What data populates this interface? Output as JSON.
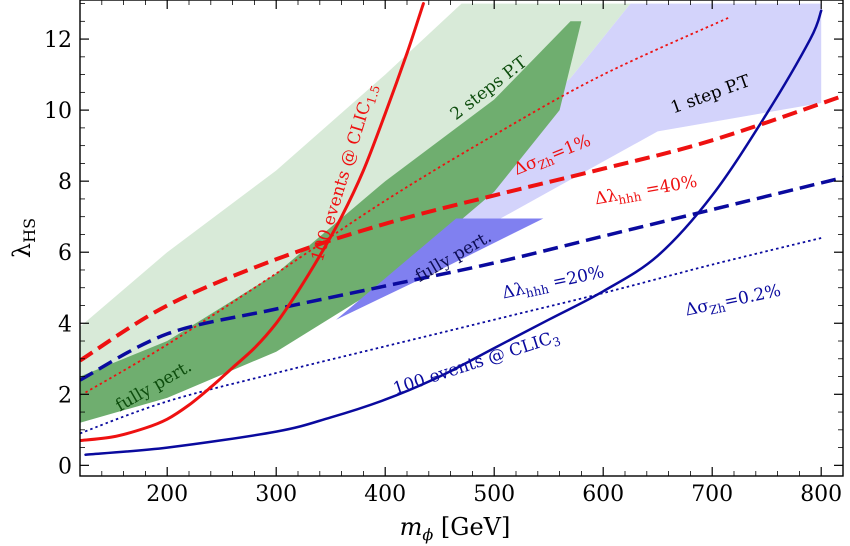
{
  "chart_data": {
    "type": "line",
    "xlabel": "m",
    "xlabel_sub": "ϕ",
    "xlabel_unit": " [GeV]",
    "ylabel": "λ",
    "ylabel_sub": "HS",
    "xlim": [
      120,
      820
    ],
    "ylim": [
      -0.3,
      13.1
    ],
    "xticks": [
      200,
      300,
      400,
      500,
      600,
      700,
      800
    ],
    "yticks": [
      0,
      2,
      4,
      6,
      8,
      10,
      12
    ],
    "colors": {
      "red": "#ee1111",
      "navy": "#0a0a9e",
      "light_green": "#d8ead8",
      "dark_green": "#6fae6f",
      "light_blue": "#d3d3fb",
      "mid_blue": "#8080f0",
      "annot_green": "#0d4d0d"
    },
    "regions": [
      {
        "id": "two-step-light-band",
        "color": "#d8ead8",
        "points": [
          [
            120,
            2.0
          ],
          [
            200,
            3.0
          ],
          [
            300,
            4.6
          ],
          [
            400,
            6.7
          ],
          [
            500,
            9.1
          ],
          [
            570,
            10.9
          ],
          [
            625,
            13.0
          ],
          [
            470,
            13.0
          ],
          [
            400,
            11.0
          ],
          [
            300,
            8.3
          ],
          [
            200,
            6.0
          ],
          [
            120,
            3.9
          ]
        ]
      },
      {
        "id": "one-step-region",
        "color": "#d3d3fb",
        "points": [
          [
            360,
            4.5
          ],
          [
            450,
            6.0
          ],
          [
            550,
            7.7
          ],
          [
            650,
            9.4
          ],
          [
            800,
            10.2
          ],
          [
            800,
            13.0
          ],
          [
            625,
            13.0
          ],
          [
            570,
            10.9
          ],
          [
            500,
            9.1
          ],
          [
            440,
            7.5
          ]
        ]
      },
      {
        "id": "two-step-dark-band",
        "color": "#6fae6f",
        "points": [
          [
            120,
            1.2
          ],
          [
            200,
            1.9
          ],
          [
            300,
            3.2
          ],
          [
            400,
            5.1
          ],
          [
            500,
            7.7
          ],
          [
            560,
            10.0
          ],
          [
            580,
            12.5
          ],
          [
            570,
            12.5
          ],
          [
            500,
            10.3
          ],
          [
            400,
            8.0
          ],
          [
            300,
            5.4
          ],
          [
            200,
            3.5
          ],
          [
            120,
            2.5
          ]
        ]
      },
      {
        "id": "fully-perturbative-region-blue",
        "color": "#8080f0",
        "points": [
          [
            355,
            4.1
          ],
          [
            450,
            5.5
          ],
          [
            545,
            6.95
          ],
          [
            465,
            6.95
          ]
        ]
      }
    ],
    "series": [
      {
        "id": "clic15-100-events",
        "style": "solid",
        "color": "#ee1111",
        "width": 3,
        "x": [
          120,
          150,
          180,
          200,
          220,
          240,
          260,
          280,
          300,
          320,
          340,
          360,
          380,
          400,
          420,
          435
        ],
        "y": [
          0.7,
          0.8,
          1.05,
          1.3,
          1.7,
          2.2,
          2.75,
          3.3,
          4.0,
          4.9,
          5.9,
          7.0,
          8.3,
          9.9,
          11.6,
          13.0
        ]
      },
      {
        "id": "clic3-100-events",
        "style": "solid",
        "color": "#0a0a9e",
        "width": 2.5,
        "x": [
          125,
          200,
          300,
          350,
          400,
          450,
          500,
          550,
          600,
          650,
          700,
          750,
          790,
          800
        ],
        "y": [
          0.3,
          0.5,
          0.95,
          1.35,
          1.85,
          2.5,
          3.3,
          4.1,
          4.9,
          5.9,
          7.6,
          9.9,
          12.0,
          12.8
        ]
      },
      {
        "id": "dlambda-hhh-40",
        "style": "dashed",
        "color": "#ee1111",
        "width": 4,
        "x": [
          120,
          200,
          300,
          400,
          500,
          600,
          700,
          820
        ],
        "y": [
          2.95,
          4.5,
          5.8,
          6.8,
          7.6,
          8.35,
          9.15,
          10.4
        ]
      },
      {
        "id": "dlambda-hhh-20",
        "style": "dashed",
        "color": "#0a0a9e",
        "width": 3.5,
        "x": [
          120,
          200,
          300,
          400,
          500,
          600,
          700,
          820
        ],
        "y": [
          2.4,
          3.7,
          4.4,
          5.05,
          5.7,
          6.45,
          7.2,
          8.1
        ]
      },
      {
        "id": "dsigma-zh-1",
        "style": "dotted",
        "color": "#ee1111",
        "width": 1.8,
        "x": [
          125,
          200,
          300,
          400,
          500,
          600,
          715
        ],
        "y": [
          2.05,
          3.4,
          5.4,
          7.45,
          9.3,
          11.0,
          12.6
        ]
      },
      {
        "id": "dsigma-zh-02",
        "style": "dotted",
        "color": "#0a0a9e",
        "width": 1.8,
        "x": [
          120,
          200,
          300,
          400,
          500,
          600,
          700,
          800
        ],
        "y": [
          0.9,
          1.8,
          2.6,
          3.35,
          4.1,
          4.85,
          5.65,
          6.4
        ]
      }
    ],
    "annotations": [
      {
        "id": "label-clic15",
        "segments": [
          {
            "t": "100 events @ CLIC"
          },
          {
            "t": "1.5",
            "sub": true
          }
        ],
        "color": "#ee1111",
        "x": 367,
        "y": 8.2,
        "angle": -73
      },
      {
        "id": "label-clic3",
        "segments": [
          {
            "t": "100 events @ CLIC"
          },
          {
            "t": "3",
            "sub": true
          }
        ],
        "color": "#0a0a9e",
        "x": 485,
        "y": 2.75,
        "angle": -18
      },
      {
        "id": "label-two-steps",
        "segments": [
          {
            "t": "2 steps P.T"
          }
        ],
        "color": "#0d4d0d",
        "x": 498,
        "y": 10.5,
        "angle": -38
      },
      {
        "id": "label-one-step",
        "segments": [
          {
            "t": "1 step P.T"
          }
        ],
        "color": "#000000",
        "x": 700,
        "y": 10.3,
        "angle": -20
      },
      {
        "id": "label-fully-pert-green",
        "segments": [
          {
            "t": "fully pert."
          }
        ],
        "color": "#0d4d0d",
        "x": 190,
        "y": 2.1,
        "angle": -30
      },
      {
        "id": "label-fully-pert-blue",
        "segments": [
          {
            "t": "fully pert."
          }
        ],
        "color": "#0d0d55",
        "x": 465,
        "y": 5.75,
        "angle": -30
      },
      {
        "id": "label-dsigma-1",
        "segments": [
          {
            "t": "Δσ"
          },
          {
            "t": "Zh",
            "sub": true
          },
          {
            "t": "=1%"
          }
        ],
        "color": "#ee1111",
        "x": 555,
        "y": 8.6,
        "angle": -22
      },
      {
        "id": "label-dlambda-40",
        "segments": [
          {
            "t": "Δλ"
          },
          {
            "t": "hhh",
            "sub": true
          },
          {
            "t": " =40%"
          }
        ],
        "color": "#ee1111",
        "x": 640,
        "y": 7.6,
        "angle": -10
      },
      {
        "id": "label-dlambda-20",
        "segments": [
          {
            "t": "Δλ"
          },
          {
            "t": "hhh",
            "sub": true
          },
          {
            "t": " =20%"
          }
        ],
        "color": "#0a0a9e",
        "x": 555,
        "y": 5.0,
        "angle": -12
      },
      {
        "id": "label-dsigma-02",
        "segments": [
          {
            "t": "Δσ"
          },
          {
            "t": "Zh",
            "sub": true
          },
          {
            "t": "=0.2%"
          }
        ],
        "color": "#0a0a9e",
        "x": 720,
        "y": 4.5,
        "angle": -12
      }
    ]
  }
}
